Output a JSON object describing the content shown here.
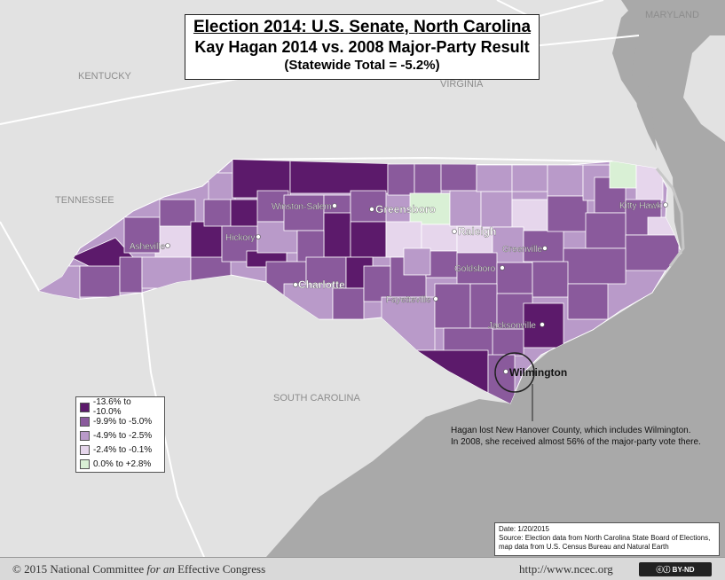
{
  "title": {
    "line1": "Election 2014: U.S. Senate, North Carolina",
    "line2": "Kay Hagan 2014 vs. 2008 Major-Party Result",
    "line3": "(Statewide Total = -5.2%)"
  },
  "states": {
    "kentucky": "KENTUCKY",
    "virginia": "VIRGINIA",
    "tennessee": "TENNESSEE",
    "south_carolina": "SOUTH CAROLINA",
    "maryland": "MARYLAND"
  },
  "cities": {
    "winston_salem": "Winston-Salem",
    "greensboro": "Greensboro",
    "raleigh": "Raleigh",
    "asheville": "Asheville",
    "hickory": "Hickory",
    "charlotte": "Charlotte",
    "greenville": "Greenville",
    "goldsboro": "Goldsboro",
    "fayetteville": "Fayetteville",
    "jacksonville": "Jacksonville",
    "wilmington": "Wilmington",
    "kitty_hawk": "Kitty Hawk"
  },
  "legend": [
    {
      "label": "-13.6% to -10.0%",
      "color": "#5c1a6b"
    },
    {
      "label": "-9.9% to -5.0%",
      "color": "#8a5a9c"
    },
    {
      "label": "-4.9% to -2.5%",
      "color": "#b99ac9"
    },
    {
      "label": "-2.4% to -0.1%",
      "color": "#e6d6ec"
    },
    {
      "label": "0.0% to +2.8%",
      "color": "#d9f0d5"
    }
  ],
  "annotation": {
    "line1": "Hagan lost New Hanover County, which includes Wilmington.",
    "line2": "In 2008, she received almost 56% of the major-party vote there."
  },
  "source": {
    "date": "Date: 1/20/2015",
    "line1": "Source: Election data from North Carolina State Board of Elections,",
    "line2": "map data from U.S. Census Bureau and Natural Earth"
  },
  "footer": {
    "copyright_prefix": "© 2015 National Committee ",
    "copyright_italic": "for an",
    "copyright_suffix": " Effective Congress",
    "url": "http://www.ncec.org",
    "license": "BY-ND"
  },
  "colors": {
    "land": "#e2e2e2",
    "water": "#a9a9a9",
    "state_border": "#ffffff"
  }
}
